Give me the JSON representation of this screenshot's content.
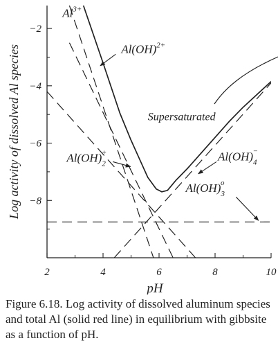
{
  "chart_data": {
    "type": "line",
    "xlabel": "pH",
    "ylabel": "Log activity of dissolved Al species",
    "xlim": [
      2,
      10
    ],
    "ylim": [
      -10,
      -1.2
    ],
    "xticks": [
      2,
      4,
      6,
      8,
      10
    ],
    "yticks": [
      -2,
      -4,
      -6,
      -8
    ],
    "grid": false,
    "series": [
      {
        "name": "Al3+",
        "style": "dashed",
        "x": [
          2.8,
          5.8
        ],
        "y": [
          -1.2,
          -10.0
        ]
      },
      {
        "name": "Al(OH)2+",
        "style": "dashed",
        "x": [
          2.8,
          6.5
        ],
        "y": [
          -2.5,
          -10.0
        ]
      },
      {
        "name": "Al(OH)2+ (dihydroxy)",
        "style": "dashed",
        "x": [
          2.0,
          7.3
        ],
        "y": [
          -4.2,
          -10.0
        ]
      },
      {
        "name": "Al(OH)4-",
        "style": "dashed",
        "x": [
          4.4,
          10.0
        ],
        "y": [
          -10.0,
          -3.9
        ]
      },
      {
        "name": "Al(OH)3o",
        "style": "dashed",
        "x": [
          2.0,
          10.0
        ],
        "y": [
          -8.75,
          -8.75
        ]
      },
      {
        "name": "Total Al",
        "style": "solid",
        "x": [
          3.3,
          4.0,
          4.6,
          5.0,
          5.3,
          5.6,
          5.9,
          6.1,
          6.3,
          6.6,
          7.0,
          7.5,
          8.0,
          8.5,
          9.0,
          9.5,
          10.0
        ],
        "y": [
          -1.2,
          -3.2,
          -4.95,
          -5.9,
          -6.55,
          -7.2,
          -7.6,
          -7.7,
          -7.65,
          -7.3,
          -6.9,
          -6.35,
          -5.8,
          -5.25,
          -4.75,
          -4.3,
          -3.85
        ]
      }
    ],
    "annotations": [
      {
        "text": "Al3+",
        "kind": "ion",
        "base": "Al",
        "sup": "3+",
        "x": 2.55,
        "y": -1.6
      },
      {
        "text": "Al(OH)2+",
        "kind": "ion",
        "base": "Al(OH)",
        "sup": "2+",
        "x": 4.65,
        "y": -2.85
      },
      {
        "text": "Al(OH)2+",
        "kind": "ion-sub",
        "base": "Al(OH)",
        "sup": "+",
        "sub": "2",
        "x": 2.7,
        "y": -6.65
      },
      {
        "text": "Al(OH)4-",
        "kind": "ion-sub",
        "base": "Al(OH)",
        "sup": "−",
        "sub": "4",
        "x": 8.1,
        "y": -6.6
      },
      {
        "text": "Al(OH)3o",
        "kind": "ion-sub",
        "base": "Al(OH)",
        "sup": "o",
        "sub": "3",
        "x": 6.95,
        "y": -7.7
      },
      {
        "text": "Supersaturated",
        "kind": "plain",
        "x": 5.6,
        "y": -5.2
      }
    ],
    "arrows": [
      {
        "from": [
          4.45,
          -2.9
        ],
        "to": [
          3.9,
          -3.3
        ]
      },
      {
        "from": [
          4.35,
          -6.65
        ],
        "to": [
          4.98,
          -6.82
        ]
      },
      {
        "from": [
          8.05,
          -6.65
        ],
        "to": [
          7.4,
          -7.07
        ]
      },
      {
        "from": [
          8.75,
          -7.88
        ],
        "to": [
          9.55,
          -8.7
        ]
      }
    ]
  },
  "caption": "Figure 6.18. Log activity of dissolved aluminum species and total Al (solid red line) in equilibrium with gibbsite as a function of pH."
}
